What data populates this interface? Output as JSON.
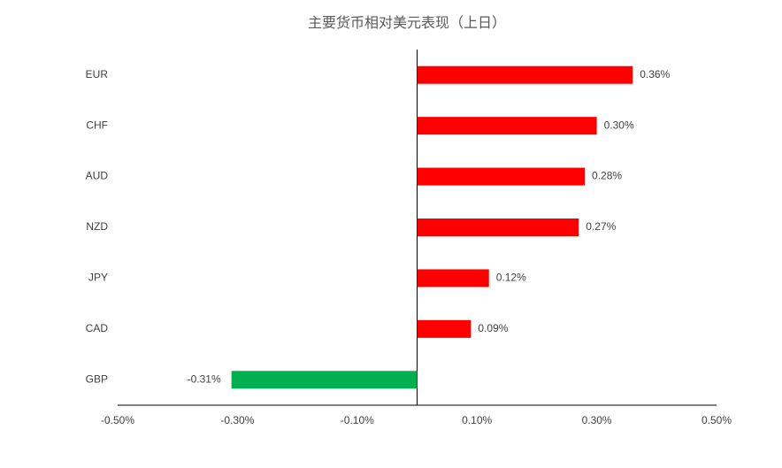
{
  "chart_data": {
    "type": "barh",
    "title": "主要货币相对美元表现（上日）",
    "categories": [
      "EUR",
      "CHF",
      "AUD",
      "NZD",
      "JPY",
      "CAD",
      "GBP"
    ],
    "values": [
      0.36,
      0.3,
      0.28,
      0.27,
      0.12,
      0.09,
      -0.31
    ],
    "value_labels": [
      "0.36%",
      "0.30%",
      "0.28%",
      "0.27%",
      "0.12%",
      "0.09%",
      "-0.31%"
    ],
    "colors": [
      "#ff0000",
      "#ff0000",
      "#ff0000",
      "#ff0000",
      "#ff0000",
      "#ff0000",
      "#00b050"
    ],
    "xlim": [
      -0.5,
      0.5
    ],
    "xticks": [
      {
        "value": -0.5,
        "label": "-0.50%"
      },
      {
        "value": -0.3,
        "label": "-0.30%"
      },
      {
        "value": -0.1,
        "label": "-0.10%"
      },
      {
        "value": 0.1,
        "label": "0.10%"
      },
      {
        "value": 0.3,
        "label": "0.30%"
      },
      {
        "value": 0.5,
        "label": "0.50%"
      }
    ]
  }
}
